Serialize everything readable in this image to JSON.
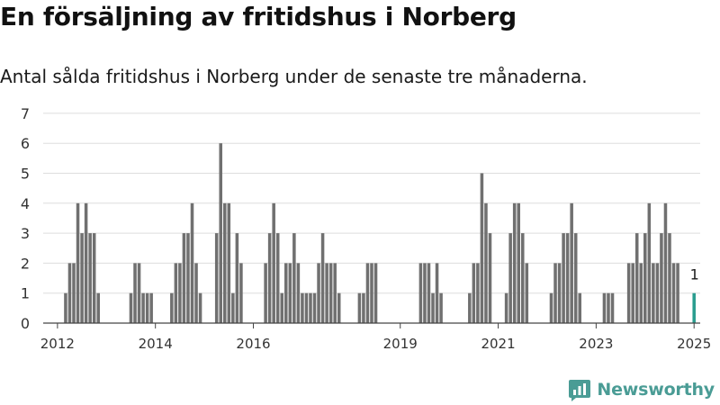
{
  "header": {
    "title": "En försäljning av fritidshus i Norberg",
    "subtitle": "Antal sålda fritidshus i Norberg under de senaste tre månaderna."
  },
  "brand": {
    "name": "Newsworthy",
    "icon": "newsworthy-logo-icon",
    "color": "#4a9c95"
  },
  "chart_data": {
    "type": "bar",
    "title": "En försäljning av fritidshus i Norberg",
    "subtitle": "Antal sålda fritidshus i Norberg under de senaste tre månaderna.",
    "xlabel": "",
    "ylabel": "",
    "ylim": [
      0,
      7
    ],
    "yticks": [
      0,
      1,
      2,
      3,
      4,
      5,
      6,
      7
    ],
    "xlim": [
      "2011-10",
      "2025-03"
    ],
    "xticks": [
      {
        "label": "2012",
        "date": "2012-01"
      },
      {
        "label": "2014",
        "date": "2014-01"
      },
      {
        "label": "2016",
        "date": "2016-01"
      },
      {
        "label": "2019",
        "date": "2019-01"
      },
      {
        "label": "2021",
        "date": "2021-01"
      },
      {
        "label": "2023",
        "date": "2023-01"
      },
      {
        "label": "2025",
        "date": "2025-01"
      }
    ],
    "grid": "horizontal",
    "bar_color": "#707070",
    "highlight_color": "#2a9d8f",
    "highlight_label": "1",
    "series": [
      {
        "x": [
          "2012-03",
          "2012-04",
          "2012-05",
          "2012-06",
          "2012-07",
          "2012-08",
          "2012-09",
          "2012-10",
          "2012-11",
          "2013-07",
          "2013-08",
          "2013-09",
          "2013-10",
          "2013-11",
          "2013-12",
          "2014-05",
          "2014-06",
          "2014-07",
          "2014-08",
          "2014-09",
          "2014-10",
          "2014-11",
          "2014-12",
          "2015-04",
          "2015-05",
          "2015-06",
          "2015-07",
          "2015-08",
          "2015-09",
          "2015-10",
          "2016-04",
          "2016-05",
          "2016-06",
          "2016-07",
          "2016-08",
          "2016-09",
          "2016-10",
          "2016-11",
          "2016-12",
          "2017-01",
          "2017-02",
          "2017-03",
          "2017-04",
          "2017-05",
          "2017-06",
          "2017-07",
          "2017-08",
          "2017-09",
          "2017-10",
          "2018-03",
          "2018-04",
          "2018-05",
          "2018-06",
          "2018-07",
          "2019-06",
          "2019-07",
          "2019-08",
          "2019-09",
          "2019-10",
          "2019-11",
          "2020-06",
          "2020-07",
          "2020-08",
          "2020-09",
          "2020-10",
          "2020-11",
          "2021-03",
          "2021-04",
          "2021-05",
          "2021-06",
          "2021-07",
          "2021-08",
          "2022-02",
          "2022-03",
          "2022-04",
          "2022-05",
          "2022-06",
          "2022-07",
          "2022-08",
          "2022-09",
          "2023-03",
          "2023-04",
          "2023-05",
          "2023-09",
          "2023-10",
          "2023-11",
          "2023-12",
          "2024-01",
          "2024-02",
          "2024-03",
          "2024-04",
          "2024-05",
          "2024-06",
          "2024-07",
          "2024-08",
          "2024-09",
          "2025-01"
        ],
        "values": [
          1,
          2,
          2,
          4,
          3,
          4,
          3,
          3,
          1,
          1,
          2,
          2,
          1,
          1,
          1,
          1,
          2,
          2,
          3,
          3,
          4,
          2,
          1,
          3,
          6,
          4,
          4,
          1,
          3,
          2,
          2,
          3,
          4,
          3,
          1,
          2,
          2,
          3,
          2,
          1,
          1,
          1,
          1,
          2,
          3,
          2,
          2,
          2,
          1,
          1,
          1,
          2,
          2,
          2,
          2,
          2,
          2,
          1,
          2,
          1,
          1,
          2,
          2,
          5,
          4,
          3,
          1,
          3,
          4,
          4,
          3,
          2,
          1,
          2,
          2,
          3,
          3,
          4,
          3,
          1,
          1,
          1,
          1,
          2,
          2,
          3,
          2,
          3,
          4,
          2,
          2,
          3,
          4,
          3,
          2,
          2,
          1
        ],
        "highlight": "2025-01"
      }
    ]
  }
}
